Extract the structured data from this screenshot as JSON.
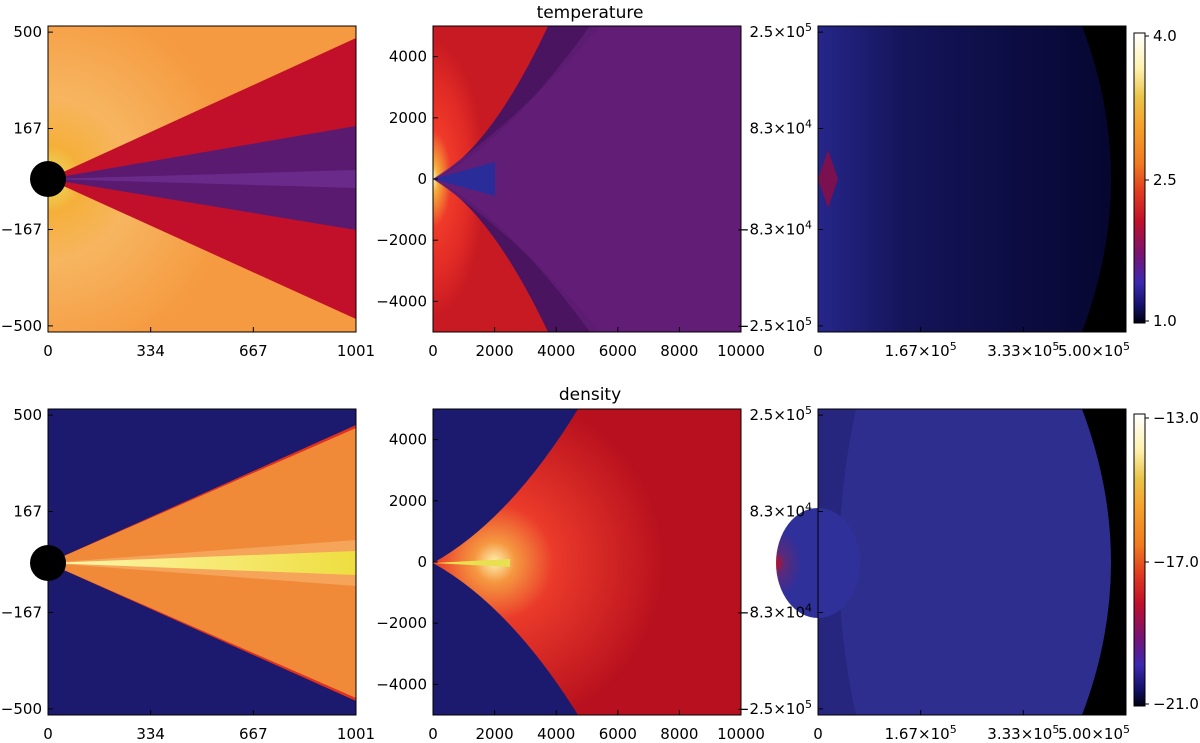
{
  "rows": [
    {
      "title": "temperature",
      "panels": [
        {
          "y_ticks": [
            "500",
            "167",
            "−167",
            "−500"
          ],
          "x_ticks": [
            "0",
            "334",
            "667",
            "1001"
          ]
        },
        {
          "y_ticks": [
            "4000",
            "2000",
            "0",
            "−2000",
            "−4000"
          ],
          "x_ticks": [
            "0",
            "2000",
            "4000",
            "6000",
            "8000",
            "10000"
          ]
        },
        {
          "y_ticks": [
            "2.5×10^5",
            "8.3×10^4",
            "−8.3×10^4",
            "−2.5×10^5"
          ],
          "x_ticks": [
            "0",
            "1.67×10^5",
            "3.33×10^5",
            "5.00×10^5"
          ]
        }
      ],
      "colorbar": {
        "labels": [
          "4.0",
          "2.5",
          "1.0"
        ],
        "scale": "temperature"
      }
    },
    {
      "title": "density",
      "panels": [
        {
          "y_ticks": [
            "500",
            "167",
            "−167",
            "−500"
          ],
          "x_ticks": [
            "0",
            "334",
            "667",
            "1001"
          ]
        },
        {
          "y_ticks": [
            "4000",
            "2000",
            "0",
            "−2000",
            "−4000"
          ],
          "x_ticks": [
            "0",
            "2000",
            "4000",
            "6000",
            "8000",
            "10000"
          ]
        },
        {
          "y_ticks": [
            "2.5×10^5",
            "8.3×10^4",
            "−8.3×10^4",
            "−2.5×10^5"
          ],
          "x_ticks": [
            "0",
            "1.67×10^5",
            "3.33×10^5",
            "5.00×10^5"
          ]
        }
      ],
      "colorbar": {
        "labels": [
          "−13.0",
          "−17.0",
          "−21.0"
        ],
        "scale": "density"
      }
    }
  ],
  "colors": {
    "navy": "#2a1f7a",
    "deep_navy": "#0a0a3c",
    "purple": "#5a1a70",
    "violet": "#6a2a88",
    "crimson": "#b0102a",
    "red": "#e02a20",
    "orange": "#f08a30",
    "light_orange": "#f5a55a",
    "yellow": "#f3e86a",
    "black": "#000000"
  }
}
